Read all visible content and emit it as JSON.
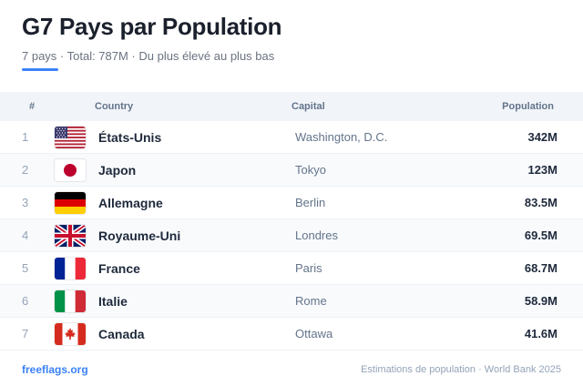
{
  "header": {
    "title": "G7 Pays par Population",
    "subtitle": "7 pays · Total: 787M · Du plus élevé au plus bas",
    "accent_color": "#3b82f6"
  },
  "table": {
    "columns": {
      "num": "#",
      "country": "Country",
      "capital": "Capital",
      "population": "Population"
    },
    "rows": [
      {
        "rank": "1",
        "flag": "us-flag-icon",
        "country": "États-Unis",
        "capital": "Washington, D.C.",
        "population": "342M"
      },
      {
        "rank": "2",
        "flag": "japan-flag-icon",
        "country": "Japon",
        "capital": "Tokyo",
        "population": "123M"
      },
      {
        "rank": "3",
        "flag": "germany-flag-icon",
        "country": "Allemagne",
        "capital": "Berlin",
        "population": "83.5M"
      },
      {
        "rank": "4",
        "flag": "uk-flag-icon",
        "country": "Royaume-Uni",
        "capital": "Londres",
        "population": "69.5M"
      },
      {
        "rank": "5",
        "flag": "france-flag-icon",
        "country": "France",
        "capital": "Paris",
        "population": "68.7M"
      },
      {
        "rank": "6",
        "flag": "italy-flag-icon",
        "country": "Italie",
        "capital": "Rome",
        "population": "58.9M"
      },
      {
        "rank": "7",
        "flag": "canada-flag-icon",
        "country": "Canada",
        "capital": "Ottawa",
        "population": "41.6M"
      }
    ]
  },
  "footer": {
    "link": "freeflags.org",
    "note": "Estimations de population · World Bank 2025"
  }
}
